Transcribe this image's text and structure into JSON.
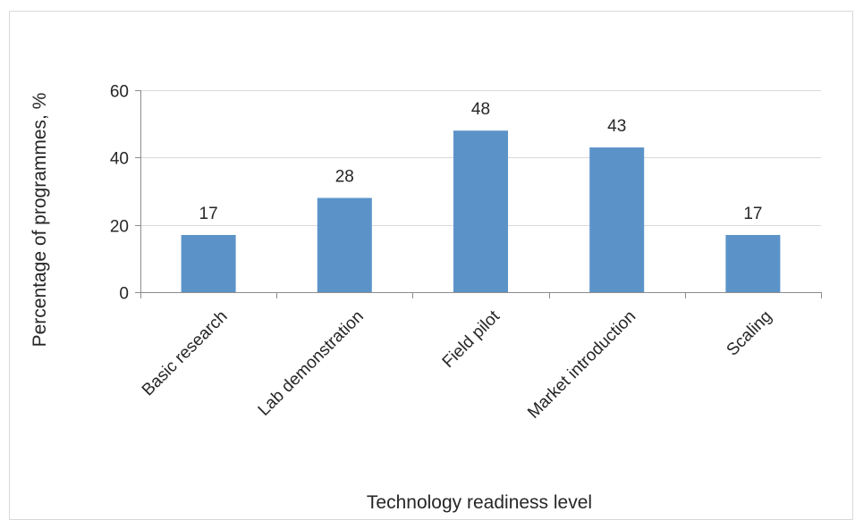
{
  "chart_data": {
    "type": "bar",
    "categories": [
      "Basic research",
      "Lab demonstration",
      "Field pilot",
      "Market introduction",
      "Scaling"
    ],
    "values": [
      17,
      28,
      48,
      43,
      17
    ],
    "data_labels": [
      "17",
      "28",
      "48",
      "43",
      "17"
    ],
    "title": "",
    "xlabel": "Technology readiness level",
    "ylabel": "Percentage of programmes, %",
    "ylim": [
      0,
      60
    ],
    "yticks": [
      0,
      20,
      40,
      60
    ],
    "ytick_labels": [
      "0",
      "20",
      "40",
      "60"
    ],
    "grid": true,
    "legend": "none",
    "bar_color": "#5b93c9",
    "gridline_color": "#d9d9d9",
    "axis_color": "#8c8c8c"
  }
}
